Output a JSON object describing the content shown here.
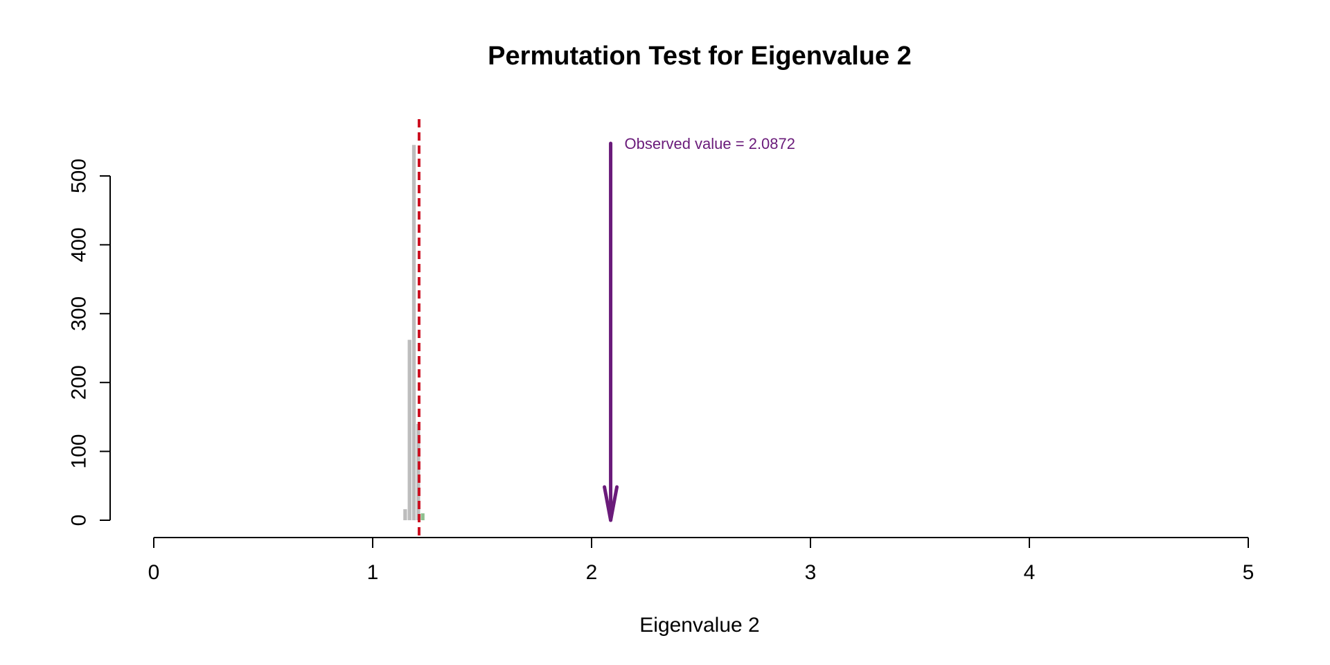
{
  "chart_data": {
    "type": "bar",
    "title": "Permutation Test for Eigenvalue 2",
    "xlabel": "Eigenvalue 2",
    "ylabel": "",
    "xlim": [
      0,
      5
    ],
    "ylim": [
      0,
      500
    ],
    "x_ticks": [
      0,
      1,
      2,
      3,
      4,
      5
    ],
    "y_ticks": [
      0,
      100,
      200,
      300,
      400,
      500
    ],
    "bin_width": 0.02,
    "bins": [
      {
        "x_start": 1.14,
        "x_end": 1.16,
        "count": 16,
        "color": "#bdbdbd"
      },
      {
        "x_start": 1.16,
        "x_end": 1.18,
        "count": 262,
        "color": "#bdbdbd"
      },
      {
        "x_start": 1.18,
        "x_end": 1.2,
        "count": 545,
        "color": "#bdbdbd"
      },
      {
        "x_start": 1.2,
        "x_end": 1.22,
        "count": 140,
        "color": "#bdbdbd"
      },
      {
        "x_start": 1.22,
        "x_end": 1.24,
        "count": 10,
        "color": "#8fbf8f"
      }
    ],
    "threshold_line": {
      "x": 1.212,
      "color": "#cc1122",
      "style": "dashed"
    },
    "observed": {
      "value": 2.0872,
      "label": "Observed value = 2.0872",
      "color": "#6a1b7a"
    },
    "grid": false,
    "legend": "none"
  }
}
